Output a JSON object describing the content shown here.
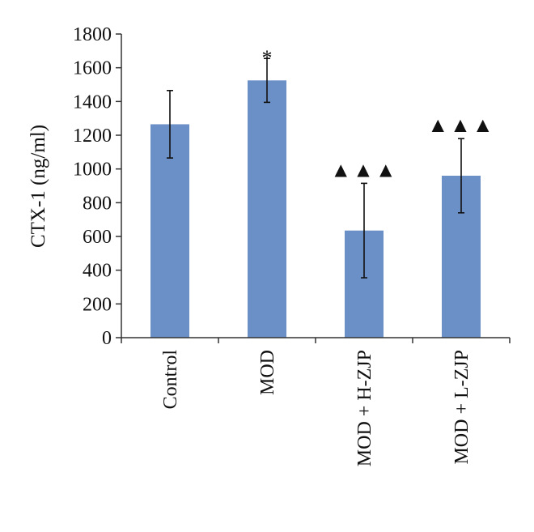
{
  "chart_data": {
    "type": "bar",
    "title": "",
    "xlabel": "",
    "ylabel": "CTX-1 (ng/ml)",
    "ylim": [
      0,
      1800
    ],
    "yticks": [
      0,
      200,
      400,
      600,
      800,
      1000,
      1200,
      1400,
      1600,
      1800
    ],
    "categories": [
      "Control",
      "MOD",
      "MOD + H-ZJP",
      "MOD + L-ZJP"
    ],
    "values": [
      1265,
      1525,
      635,
      960
    ],
    "errors": [
      200,
      130,
      280,
      220
    ],
    "annotations": [
      "",
      "*",
      "▲▲▲",
      "▲▲▲"
    ],
    "bar_color": "#6b8fc7",
    "grid": false,
    "legend": "none"
  }
}
